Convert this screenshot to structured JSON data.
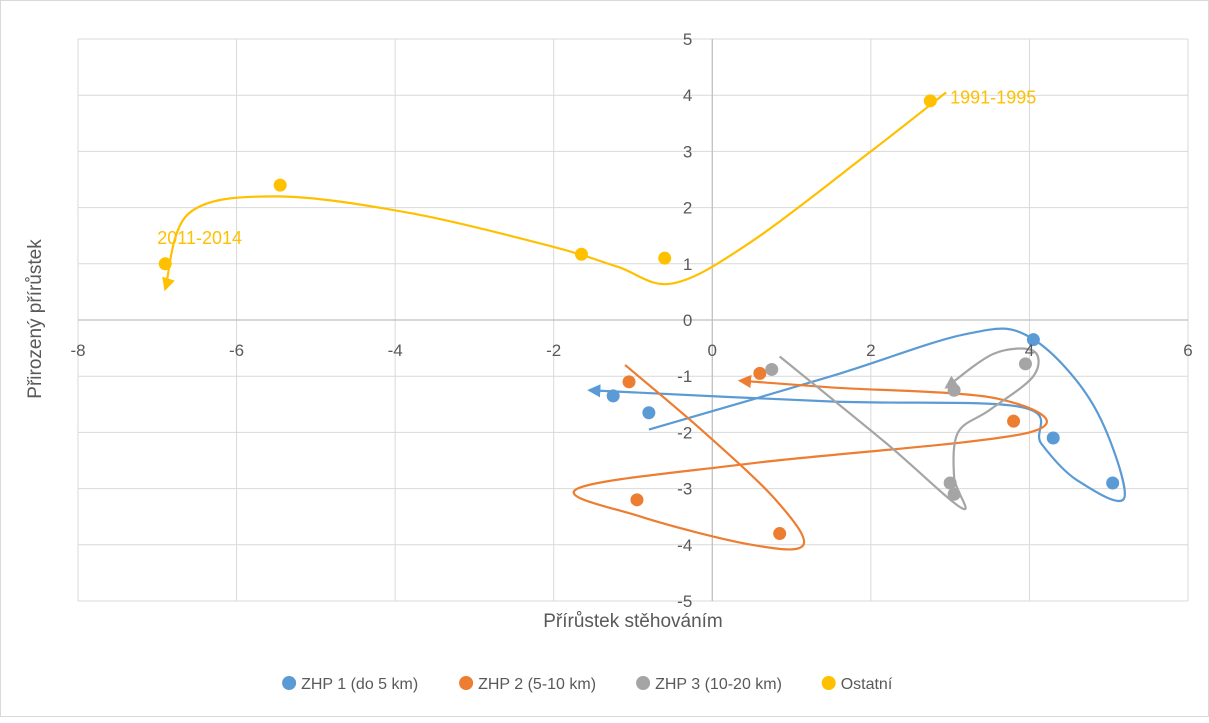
{
  "chart_data": {
    "type": "scatter",
    "title": "",
    "xlabel": "Přírůstek stěhováním",
    "ylabel": "Přirozený přírůstek",
    "xlim": [
      -8,
      6
    ],
    "ylim": [
      -5,
      5
    ],
    "x_ticks": [
      "-8",
      "-6",
      "-4",
      "-2",
      "0",
      "2",
      "4",
      "6"
    ],
    "y_ticks": [
      "-5",
      "-4",
      "-3",
      "-2",
      "-1",
      "0",
      "1",
      "2",
      "3",
      "4",
      "5"
    ],
    "grid": true,
    "legend_position": "bottom",
    "series": [
      {
        "name": "ZHP 1 (do 5 km)",
        "color": "#5b9bd5",
        "points": [
          [
            4.05,
            -0.35
          ],
          [
            4.3,
            -2.1
          ],
          [
            5.05,
            -2.9
          ],
          [
            -0.8,
            -1.65
          ],
          [
            -1.25,
            -1.35
          ]
        ]
      },
      {
        "name": "ZHP 2 (5-10 km)",
        "color": "#ed7d31",
        "points": [
          [
            3.8,
            -1.8
          ],
          [
            0.6,
            -0.95
          ],
          [
            -1.05,
            -1.1
          ],
          [
            -0.95,
            -3.2
          ],
          [
            0.85,
            -3.8
          ]
        ]
      },
      {
        "name": "ZHP 3 (10-20 km)",
        "color": "#a5a5a5",
        "points": [
          [
            3.05,
            -3.1
          ],
          [
            3.0,
            -2.9
          ],
          [
            3.05,
            -1.25
          ],
          [
            3.95,
            -0.78
          ],
          [
            0.75,
            -0.88
          ]
        ]
      },
      {
        "name": "Ostatní",
        "color": "#ffc000",
        "points": [
          [
            2.75,
            3.9
          ],
          [
            -0.6,
            1.1
          ],
          [
            -1.65,
            1.17
          ],
          [
            -5.45,
            2.4
          ],
          [
            -6.9,
            1.0
          ]
        ]
      }
    ],
    "trend_paths": [
      {
        "color": "#5b9bd5",
        "points": [
          [
            -0.8,
            -1.95
          ],
          [
            1.5,
            -1.0
          ],
          [
            3.2,
            -0.25
          ],
          [
            4.0,
            -0.3
          ],
          [
            4.8,
            -1.5
          ],
          [
            5.2,
            -3.15
          ],
          [
            4.6,
            -2.85
          ],
          [
            4.15,
            -2.2
          ],
          [
            3.9,
            -1.55
          ],
          [
            1.5,
            -1.45
          ],
          [
            -1.55,
            -1.25
          ]
        ]
      },
      {
        "color": "#ed7d31",
        "points": [
          [
            -1.1,
            -0.8
          ],
          [
            -0.1,
            -2.0
          ],
          [
            0.8,
            -3.2
          ],
          [
            1.15,
            -4.0
          ],
          [
            0.5,
            -4.0
          ],
          [
            -0.9,
            -3.5
          ],
          [
            -1.7,
            -3.0
          ],
          [
            0.5,
            -2.55
          ],
          [
            4.0,
            -2.0
          ],
          [
            3.6,
            -1.4
          ],
          [
            1.5,
            -1.2
          ],
          [
            0.35,
            -1.08
          ]
        ]
      },
      {
        "color": "#a5a5a5",
        "points": [
          [
            0.85,
            -0.65
          ],
          [
            2.2,
            -2.2
          ],
          [
            3.15,
            -3.35
          ],
          [
            3.05,
            -2.8
          ],
          [
            3.1,
            -2.0
          ],
          [
            3.5,
            -1.6
          ],
          [
            4.05,
            -1.0
          ],
          [
            4.05,
            -0.55
          ],
          [
            3.55,
            -0.6
          ],
          [
            2.95,
            -1.2
          ]
        ]
      },
      {
        "color": "#ffc000",
        "points": [
          [
            2.95,
            4.05
          ],
          [
            2.0,
            3.0
          ],
          [
            0.5,
            1.4
          ],
          [
            -0.5,
            0.65
          ],
          [
            -1.2,
            0.95
          ],
          [
            -2.0,
            1.3
          ],
          [
            -3.8,
            1.9
          ],
          [
            -5.5,
            2.2
          ],
          [
            -6.6,
            1.9
          ],
          [
            -6.9,
            0.55
          ]
        ]
      }
    ],
    "annotations": [
      {
        "text": "1991-1995",
        "x": 3.0,
        "y": 3.85,
        "color": "#ffc000"
      },
      {
        "text": "2011-2014",
        "x": -7.0,
        "y": 1.35,
        "color": "#ffc000"
      }
    ]
  }
}
